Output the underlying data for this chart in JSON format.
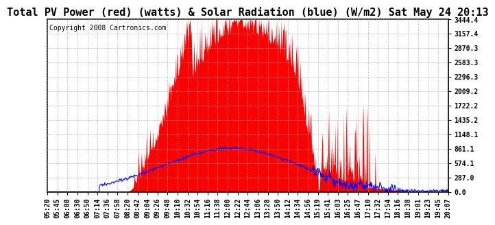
{
  "title": "Total PV Power (red) (watts) & Solar Radiation (blue) (W/m2) Sat May 24 20:13",
  "copyright": "Copyright 2008 Cartronics.com",
  "ymin": 0.0,
  "ymax": 3444.4,
  "yticks": [
    0.0,
    287.0,
    574.1,
    861.1,
    1148.1,
    1435.2,
    1722.2,
    2009.2,
    2296.3,
    2583.3,
    2870.3,
    3157.4,
    3444.4
  ],
  "xtick_labels": [
    "05:20",
    "05:45",
    "06:08",
    "06:30",
    "06:50",
    "07:14",
    "07:36",
    "07:58",
    "08:20",
    "08:42",
    "09:04",
    "09:26",
    "09:48",
    "10:10",
    "10:32",
    "10:54",
    "11:16",
    "11:38",
    "12:00",
    "12:22",
    "12:44",
    "13:06",
    "13:28",
    "13:50",
    "14:12",
    "14:34",
    "14:56",
    "15:19",
    "15:41",
    "16:03",
    "16:25",
    "16:47",
    "17:10",
    "17:32",
    "17:54",
    "18:16",
    "18:38",
    "19:01",
    "19:23",
    "19:45",
    "20:07"
  ],
  "title_fontsize": 11,
  "copyright_fontsize": 7,
  "tick_label_fontsize": 7,
  "bg_color": "#ffffff",
  "grid_color": "#aaaaaa",
  "red_color": "#ff0000",
  "blue_color": "#0000ff",
  "border_color": "#000000"
}
